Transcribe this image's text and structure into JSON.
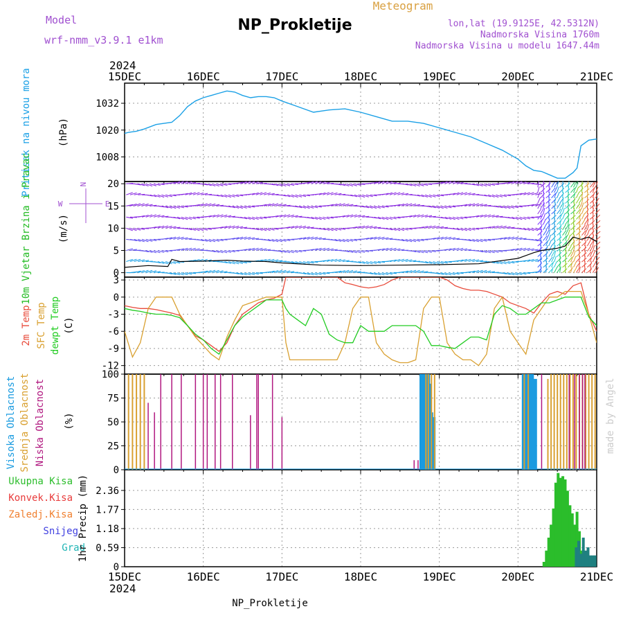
{
  "header": {
    "model_label": "Model",
    "model_name": "wrf-nmm_v3.9.1 e1km",
    "title": "NP_Prokletije",
    "meteogram_label": "Meteogram",
    "lonlat": "lon,lat (19.9125E, 42.5312N)",
    "elevation": "Nadmorska Visina 1760m",
    "model_elevation": "Nadmorska Visina u modelu 1647.44m",
    "footer": "NP_Prokletije",
    "watermark": "made by Angel",
    "year": "2024"
  },
  "colors": {
    "pressure": "#1aa0e6",
    "wind_label": "#22bb22",
    "temp": "#e84a3a",
    "sfc_temp": "#d9a030",
    "dewpt": "#22cc22",
    "cloud_high": "#1a9be0",
    "cloud_mid": "#d9a030",
    "cloud_low": "#b0177f",
    "rain_total": "#2bbd2b",
    "rain_conv": "#e83a3a",
    "rain_frozen": "#f08030",
    "snow": "#4040e0",
    "graupel": "#1fb5b5",
    "model_text": "#a050d0",
    "meteogram_text": "#d9a040"
  },
  "chart_data": [
    {
      "type": "line",
      "panel": "pressure",
      "time_axis": [
        "15DEC",
        "16DEC",
        "17DEC",
        "18DEC",
        "19DEC",
        "20DEC",
        "21DEC"
      ],
      "ylabel": "Pritisak na nivou mora",
      "unit": "(hPa)",
      "yticks": [
        1008,
        1020,
        1032
      ],
      "ylim": [
        997,
        1041
      ],
      "x_days": [
        0,
        0.05,
        0.15,
        0.25,
        0.4,
        0.5,
        0.6,
        0.7,
        0.8,
        0.9,
        1.0,
        1.1,
        1.2,
        1.3,
        1.4,
        1.5,
        1.6,
        1.7,
        1.8,
        1.9,
        2.0,
        2.2,
        2.4,
        2.5,
        2.6,
        2.8,
        3.0,
        3.2,
        3.4,
        3.6,
        3.8,
        4.0,
        4.2,
        4.4,
        4.6,
        4.8,
        5.0,
        5.1,
        5.2,
        5.3,
        5.4,
        5.5,
        5.6,
        5.7,
        5.75,
        5.8,
        5.9,
        6.0
      ],
      "values": [
        1018.5,
        1019,
        1019.5,
        1020.5,
        1022.5,
        1023,
        1023.5,
        1026.5,
        1030.5,
        1033,
        1034.5,
        1035.5,
        1036.5,
        1037.5,
        1037,
        1035.5,
        1034.5,
        1035,
        1035,
        1034.5,
        1033,
        1030.5,
        1028,
        1028.5,
        1029,
        1029.5,
        1028,
        1026,
        1024,
        1024,
        1023,
        1021,
        1019,
        1017,
        1014,
        1011,
        1007,
        1004,
        1002,
        1001.5,
        1000,
        998.5,
        998.5,
        1001,
        1003,
        1013,
        1015.5,
        1016
      ]
    },
    {
      "type": "scatter",
      "panel": "wind",
      "ylabel": "10m Vjetar Brzina i Pravac",
      "unit": "(m/s)",
      "compass": [
        "N",
        "W",
        "E"
      ],
      "yticks": [
        0,
        5,
        10,
        15,
        20
      ],
      "ylim": [
        -1,
        20.5
      ],
      "speed_x_days": [
        0,
        0.3,
        0.55,
        0.6,
        0.7,
        1.0,
        1.3,
        1.5,
        1.8,
        2.0,
        2.5,
        3.0,
        3.5,
        4.0,
        4.5,
        5.0,
        5.2,
        5.3,
        5.5,
        5.6,
        5.7,
        5.8,
        5.9,
        6.0
      ],
      "speed_values": [
        1.2,
        1.6,
        1.4,
        3,
        2.5,
        2.6,
        2.8,
        2.6,
        2.5,
        2.2,
        1.7,
        1.6,
        1.7,
        1.8,
        2,
        3.2,
        4.5,
        5,
        5.5,
        6,
        8,
        7.5,
        8,
        7
      ]
    },
    {
      "type": "line",
      "panel": "temperature",
      "ylabel_lines": [
        "2m Temp",
        "SFC Temp",
        "dewpt Temp"
      ],
      "unit": "(C)",
      "yticks": [
        -12,
        -9,
        -6,
        -3,
        0,
        3
      ],
      "ylim": [
        -13.5,
        3.5
      ],
      "x_days": [
        0,
        0.1,
        0.2,
        0.3,
        0.4,
        0.5,
        0.6,
        0.7,
        0.8,
        0.9,
        1.0,
        1.1,
        1.2,
        1.3,
        1.4,
        1.5,
        1.6,
        1.7,
        1.8,
        1.9,
        2.0,
        2.05,
        2.1,
        2.2,
        2.3,
        2.4,
        2.5,
        2.6,
        2.7,
        2.8,
        2.9,
        3.0,
        3.1,
        3.2,
        3.3,
        3.4,
        3.5,
        3.6,
        3.7,
        3.8,
        3.9,
        4.0,
        4.1,
        4.2,
        4.3,
        4.4,
        4.5,
        4.6,
        4.7,
        4.8,
        4.9,
        5.0,
        5.1,
        5.2,
        5.3,
        5.4,
        5.5,
        5.6,
        5.7,
        5.8,
        5.9,
        6.0
      ],
      "series": [
        {
          "name": "2m Temp",
          "values": [
            -1.5,
            -1.8,
            -2,
            -2,
            -2.2,
            -2.5,
            -2.8,
            -3.2,
            -5,
            -6.8,
            -7.5,
            -8.5,
            -9.5,
            -8,
            -5,
            -3,
            -2,
            -1,
            -0.5,
            -0.2,
            0.5,
            3.5,
            3.5,
            3.5,
            3.5,
            3.5,
            3.5,
            3.5,
            3.5,
            2.5,
            2.2,
            1.8,
            1.6,
            1.8,
            2.2,
            3,
            3.5,
            3.5,
            3.5,
            3.5,
            3.5,
            3.5,
            3,
            2,
            1.5,
            1.2,
            1.2,
            1,
            0.5,
            0,
            -1,
            -1.5,
            -2,
            -2.8,
            -1,
            0.5,
            1,
            0.5,
            2,
            2.5,
            -3,
            -6
          ]
        },
        {
          "name": "SFC Temp",
          "values": [
            -6,
            -10.5,
            -8,
            -2,
            0,
            0,
            0,
            -3,
            -5,
            -7,
            -8.5,
            -10,
            -11,
            -7,
            -4,
            -1.5,
            -1,
            -0.5,
            0,
            0,
            0,
            -8,
            -11,
            -11,
            -11,
            -11,
            -11,
            -11,
            -11,
            -8,
            -2,
            0,
            0,
            -8,
            -10,
            -11,
            -11.5,
            -11.5,
            -11,
            -2,
            0,
            0,
            -8,
            -10,
            -11,
            -11,
            -12,
            -10,
            -2,
            0,
            -6,
            -8,
            -10,
            -4,
            -2,
            0,
            0,
            1,
            1,
            1,
            -3,
            -8
          ]
        },
        {
          "name": "dewpt Temp",
          "values": [
            -2,
            -2.3,
            -2.5,
            -2.8,
            -3,
            -3,
            -3.2,
            -3.6,
            -5,
            -6.5,
            -7.5,
            -9,
            -10,
            -7.5,
            -5,
            -3.5,
            -2.5,
            -1.5,
            -0.5,
            -0.5,
            -0.5,
            -2,
            -3,
            -4,
            -5,
            -2,
            -3,
            -6.5,
            -7.5,
            -8,
            -8,
            -5,
            -6,
            -6,
            -6,
            -5,
            -5,
            -5,
            -5,
            -6,
            -8.5,
            -8.5,
            -8.8,
            -9,
            -8,
            -7,
            -7,
            -7.5,
            -3,
            -1.5,
            -2,
            -3,
            -3,
            -2,
            -1,
            -1,
            -0.5,
            0,
            0,
            0,
            -3.5,
            -5
          ]
        }
      ]
    },
    {
      "type": "bar",
      "panel": "clouds",
      "ylabel_lines": [
        "Visoka Oblacnost",
        "Srednja Oblacnost",
        "Niska Oblacnost"
      ],
      "unit": "(%)",
      "yticks": [
        0,
        25,
        50,
        75,
        100
      ],
      "ylim": [
        0,
        100
      ],
      "series": [
        {
          "name": "Visoka Oblacnost",
          "x_days": [
            3.77,
            3.79,
            3.82,
            3.84,
            3.86,
            3.88,
            3.9,
            3.93,
            5.07,
            5.09,
            5.11,
            5.14,
            5.16,
            5.18,
            5.2,
            5.22
          ],
          "values": [
            100,
            100,
            100,
            100,
            100,
            90,
            60,
            55,
            100,
            100,
            100,
            100,
            100,
            100,
            60,
            95
          ]
        },
        {
          "name": "Srednja Oblacnost",
          "x_days": [
            0.05,
            0.1,
            0.15,
            0.2,
            0.25,
            3.83,
            3.86,
            3.9,
            3.94,
            5.08,
            5.13,
            5.38,
            5.42,
            5.46,
            5.5,
            5.54,
            5.58,
            5.62,
            5.66,
            5.7,
            5.74,
            5.78,
            5.82,
            5.86,
            5.9,
            5.94,
            5.98
          ],
          "values": [
            100,
            100,
            100,
            100,
            100,
            100,
            100,
            100,
            100,
            100,
            100,
            95,
            100,
            100,
            100,
            100,
            100,
            100,
            100,
            100,
            100,
            100,
            100,
            100,
            100,
            100,
            100
          ]
        },
        {
          "name": "Niska Oblacnost",
          "x_days": [
            0.3,
            0.38,
            0.46,
            0.6,
            0.72,
            0.9,
            1.0,
            1.05,
            1.15,
            1.22,
            1.37,
            1.6,
            1.68,
            1.7,
            1.88,
            2.0,
            3.68,
            3.73,
            5.3,
            5.65,
            5.72,
            5.78,
            5.82,
            5.85
          ],
          "values": [
            70,
            60,
            100,
            100,
            100,
            100,
            100,
            100,
            100,
            100,
            100,
            57,
            100,
            100,
            100,
            55,
            10,
            10,
            100,
            100,
            100,
            100,
            100,
            100
          ]
        }
      ]
    },
    {
      "type": "bar",
      "panel": "precipitation",
      "ylabel_lines": [
        "Ukupna Kisa",
        "Konvek.Kisa",
        "Zaledj.Kisa",
        "Snijeg",
        "Grad"
      ],
      "ylabel": "1hr Precip (mm)",
      "yticks": [
        0,
        0.59,
        1.18,
        1.77,
        2.36
      ],
      "ylim": [
        0,
        3.0
      ],
      "series": [
        {
          "name": "Ukupna Kisa",
          "x_days": [
            5.33,
            5.36,
            5.39,
            5.42,
            5.45,
            5.48,
            5.51,
            5.54,
            5.57,
            5.6,
            5.63,
            5.66,
            5.69,
            5.72,
            5.75,
            5.78,
            5.81,
            5.84
          ],
          "values": [
            0.15,
            0.5,
            0.9,
            1.3,
            1.8,
            2.6,
            2.9,
            2.75,
            2.8,
            2.7,
            2.35,
            1.9,
            1.65,
            1.3,
            1.7,
            1.1,
            0.5,
            0.3
          ]
        },
        {
          "name": "Snijeg",
          "x_days": [
            5.74,
            5.77,
            5.8,
            5.83,
            5.86,
            5.89,
            5.92,
            5.95,
            5.98
          ],
          "values": [
            0.6,
            0.8,
            0.4,
            0.9,
            0.5,
            0.6,
            0.35,
            0.35,
            0.35
          ]
        }
      ]
    }
  ]
}
